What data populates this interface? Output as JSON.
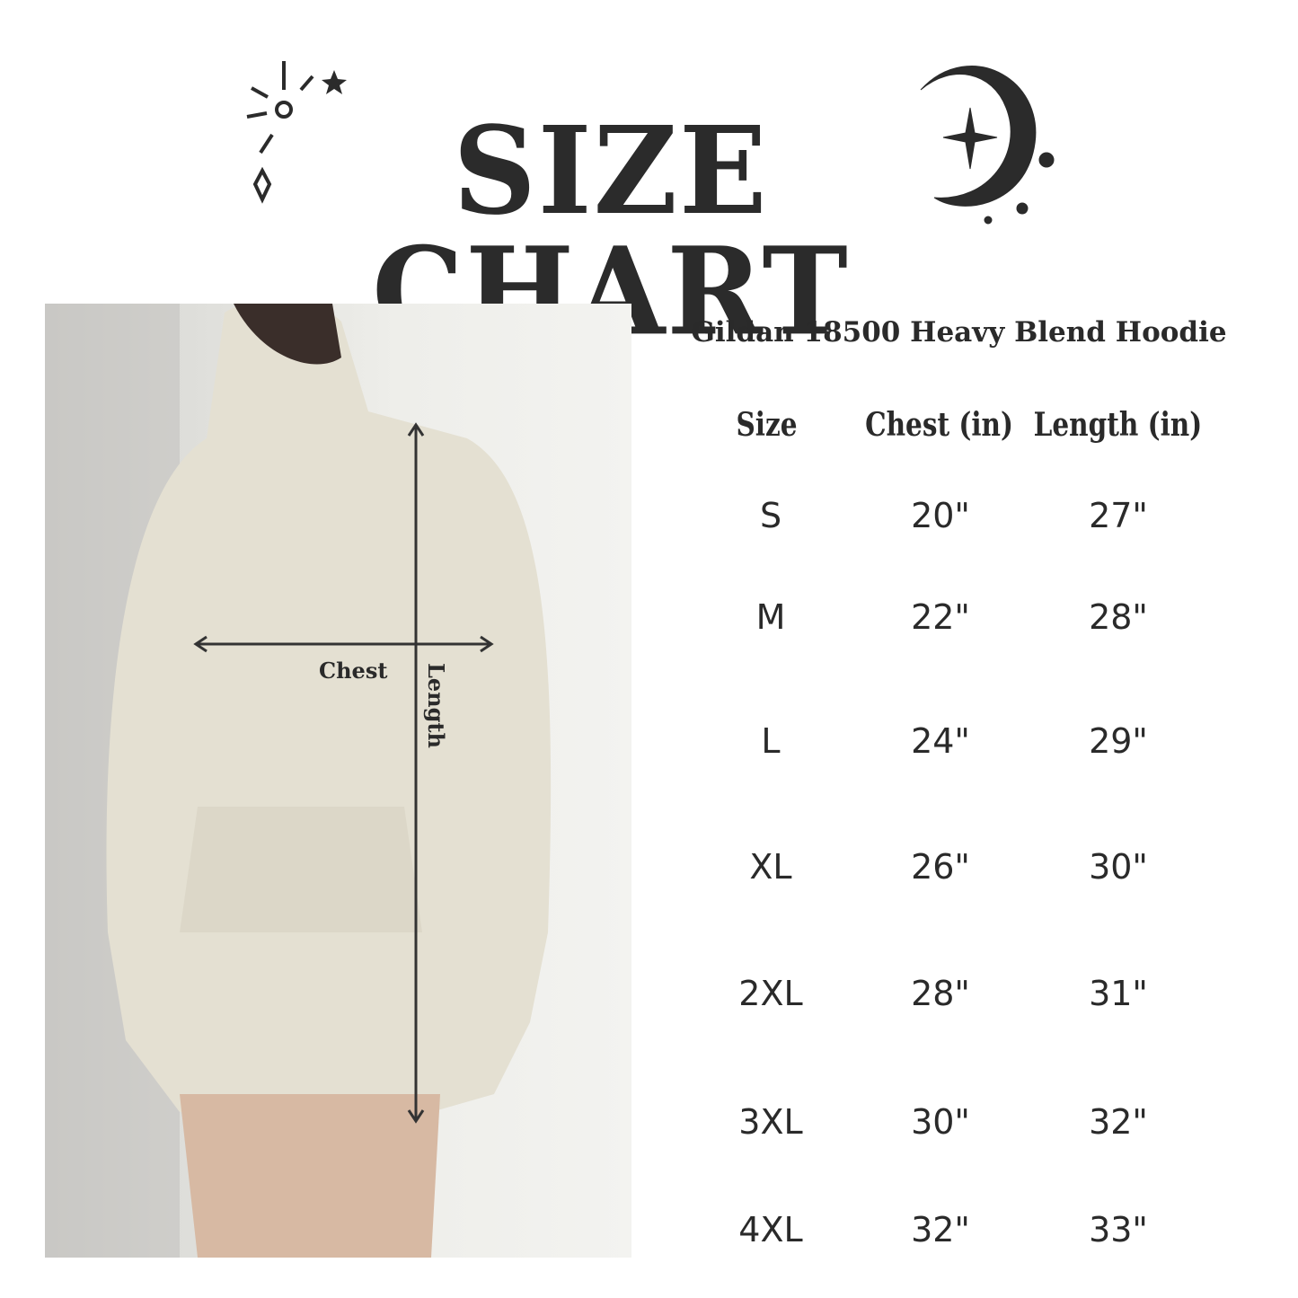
{
  "header": {
    "title": "SIZE CHART"
  },
  "product_name": "Gildan 18500 Heavy Blend Hoodie",
  "photo": {
    "chest_label": "Chest",
    "length_label": "Length"
  },
  "table": {
    "columns": [
      "Size",
      "Chest (in)",
      "Length (in)"
    ],
    "rows": [
      [
        "S",
        "20\"",
        "27\""
      ],
      [
        "M",
        "22\"",
        "28\""
      ],
      [
        "L",
        "24\"",
        "29\""
      ],
      [
        "XL",
        "26\"",
        "30\""
      ],
      [
        "2XL",
        "28\"",
        "31\""
      ],
      [
        "3XL",
        "30\"",
        "32\""
      ],
      [
        "4XL",
        "32\"",
        "33\""
      ]
    ]
  },
  "colors": {
    "text": "#2a2a2a",
    "hoodie": "#e4e0d2"
  }
}
